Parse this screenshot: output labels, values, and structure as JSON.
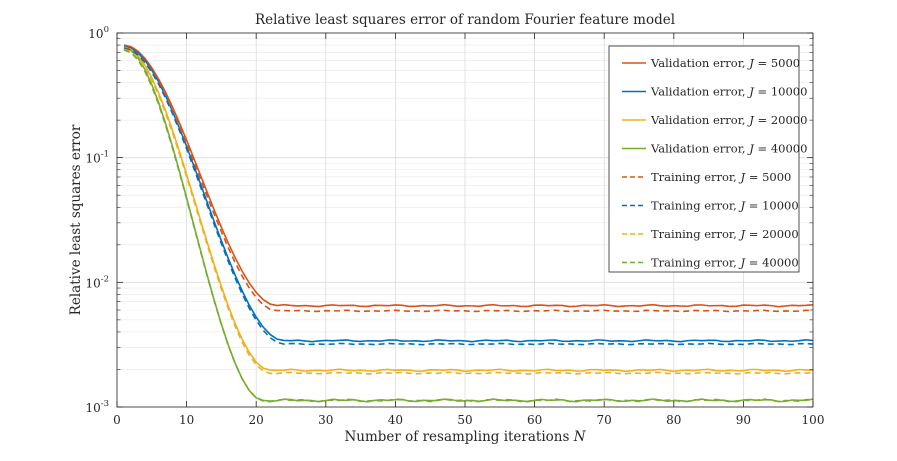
{
  "chart_data": {
    "type": "line",
    "title": "Relative least squares error of random Fourier feature model",
    "xlabel": "Number of resampling iterations",
    "xlabel_symbol": "N",
    "ylabel": "Relative least squares error",
    "x_scale": "linear",
    "y_scale": "log",
    "xlim": [
      0,
      100
    ],
    "ylim": [
      0.001,
      1
    ],
    "x_ticks": [
      0,
      10,
      20,
      30,
      40,
      50,
      60,
      70,
      80,
      90,
      100
    ],
    "x_tick_labels": [
      "0",
      "10",
      "20",
      "30",
      "40",
      "50",
      "60",
      "70",
      "80",
      "90",
      "100"
    ],
    "y_ticks": [
      0.001,
      0.01,
      0.1,
      1
    ],
    "y_tick_labels": [
      {
        "base": "10",
        "exp": "-3"
      },
      {
        "base": "10",
        "exp": "-2"
      },
      {
        "base": "10",
        "exp": "-1"
      },
      {
        "base": "10",
        "exp": "0"
      }
    ],
    "grid": true,
    "legend_position": "top-right",
    "x": [
      1,
      2,
      3,
      4,
      5,
      6,
      7,
      8,
      9,
      10,
      11,
      12,
      13,
      14,
      15,
      16,
      17,
      18,
      19,
      20,
      21,
      22,
      23,
      24,
      25,
      26,
      27,
      28,
      29,
      30,
      31,
      32,
      33,
      34,
      35,
      36,
      37,
      38,
      39,
      40,
      41,
      42,
      43,
      44,
      45,
      46,
      47,
      48,
      49,
      50,
      51,
      52,
      53,
      54,
      55,
      56,
      57,
      58,
      59,
      60,
      61,
      62,
      63,
      64,
      65,
      66,
      67,
      68,
      69,
      70,
      71,
      72,
      73,
      74,
      75,
      76,
      77,
      78,
      79,
      80,
      81,
      82,
      83,
      84,
      85,
      86,
      87,
      88,
      89,
      90,
      91,
      92,
      93,
      94,
      95,
      96,
      97,
      98,
      99,
      100
    ],
    "series": [
      {
        "name": "Validation error, ",
        "J": "5000",
        "color": "#D95319",
        "style": "solid",
        "start": 0.8,
        "x_end": 23,
        "plateau": 0.0065,
        "jitter": 0.00012
      },
      {
        "name": "Validation error, ",
        "J": "10000",
        "color": "#0072BD",
        "style": "solid",
        "start": 0.78,
        "x_end": 24,
        "plateau": 0.0034,
        "jitter": 6e-05
      },
      {
        "name": "Validation error, ",
        "J": "20000",
        "color": "#EDB120",
        "style": "solid",
        "start": 0.77,
        "x_end": 22,
        "plateau": 0.00197,
        "jitter": 4e-05
      },
      {
        "name": "Validation error, ",
        "J": "40000",
        "color": "#77AC30",
        "style": "solid",
        "start": 0.76,
        "x_end": 21,
        "plateau": 0.00113,
        "jitter": 3e-05
      },
      {
        "name": "Training error, ",
        "J": "5000",
        "color": "#D95319",
        "style": "dashed",
        "start": 0.76,
        "x_end": 23,
        "plateau": 0.0059,
        "jitter": 8e-05
      },
      {
        "name": "Training error, ",
        "J": "10000",
        "color": "#0072BD",
        "style": "dashed",
        "start": 0.75,
        "x_end": 24,
        "plateau": 0.0032,
        "jitter": 4e-05
      },
      {
        "name": "Training error, ",
        "J": "20000",
        "color": "#EDB120",
        "style": "dashed",
        "start": 0.74,
        "x_end": 22,
        "plateau": 0.00187,
        "jitter": 3e-05
      },
      {
        "name": "Training error, ",
        "J": "40000",
        "color": "#77AC30",
        "style": "dashed",
        "start": 0.73,
        "x_end": 21,
        "plateau": 0.00113,
        "jitter": 3e-05
      }
    ],
    "legend_symbol": "J",
    "legend_eq": " = "
  }
}
